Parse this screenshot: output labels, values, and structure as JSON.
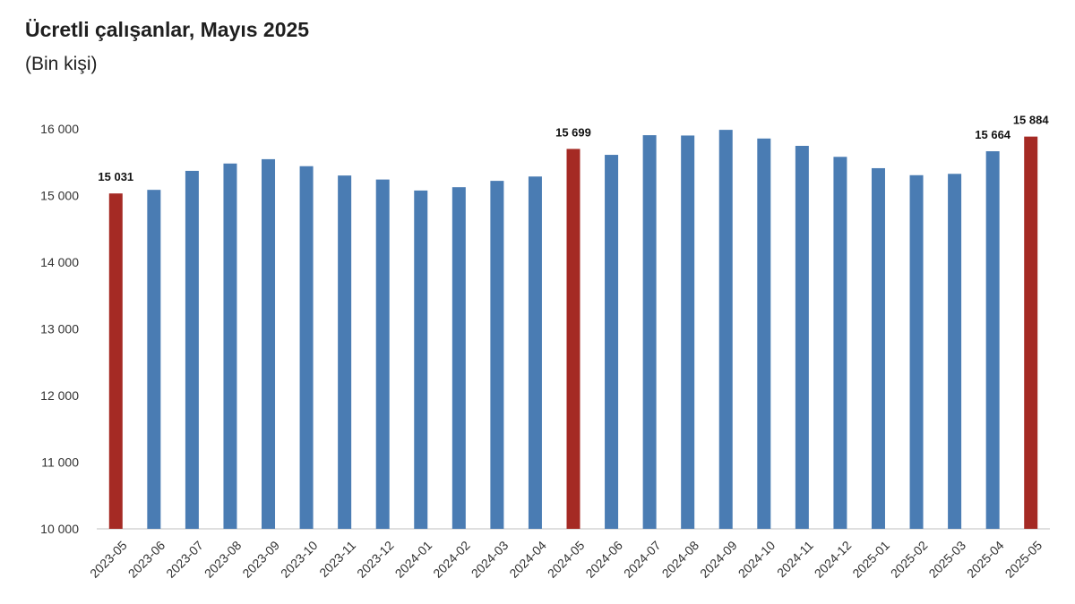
{
  "header": {
    "title": "Ücretli çalışanlar, Mayıs 2025",
    "subtitle": "(Bin kişi)"
  },
  "colors": {
    "bar": "#4a7cb3",
    "highlight": "#a52a24",
    "axis": "#bfbfbf"
  },
  "chart_data": {
    "type": "bar",
    "title": "Ücretli çalışanlar, Mayıs 2025",
    "subtitle": "(Bin kişi)",
    "xlabel": "",
    "ylabel": "",
    "ylim": [
      10000,
      16000
    ],
    "yticks": [
      10000,
      11000,
      12000,
      13000,
      14000,
      15000,
      16000
    ],
    "ytick_labels": [
      "10 000",
      "11 000",
      "12 000",
      "13 000",
      "14 000",
      "15 000",
      "16 000"
    ],
    "grid": false,
    "categories": [
      "2023-05",
      "2023-06",
      "2023-07",
      "2023-08",
      "2023-09",
      "2023-10",
      "2023-11",
      "2023-12",
      "2024-01",
      "2024-02",
      "2024-03",
      "2024-04",
      "2024-05",
      "2024-06",
      "2024-07",
      "2024-08",
      "2024-09",
      "2024-10",
      "2024-11",
      "2024-12",
      "2025-01",
      "2025-02",
      "2025-03",
      "2025-04",
      "2025-05"
    ],
    "values": [
      15031,
      15085,
      15370,
      15480,
      15545,
      15440,
      15300,
      15240,
      15075,
      15125,
      15220,
      15285,
      15699,
      15610,
      15905,
      15900,
      15985,
      15855,
      15745,
      15580,
      15410,
      15305,
      15325,
      15664,
      15884
    ],
    "highlighted": [
      0,
      12,
      24
    ],
    "data_labels": [
      {
        "index": 0,
        "text": "15 031"
      },
      {
        "index": 12,
        "text": "15 699"
      },
      {
        "index": 23,
        "text": "15 664"
      },
      {
        "index": 24,
        "text": "15 884"
      }
    ]
  }
}
